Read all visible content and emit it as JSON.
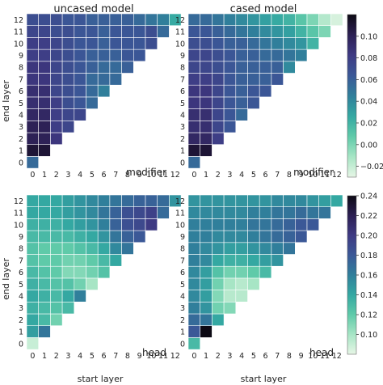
{
  "figure": {
    "xlabel": "start layer",
    "ylabel": "end layer"
  },
  "colors": {
    "colormap_stops": [
      "#e7f6e6",
      "#a7e5c5",
      "#5fcaa9",
      "#34a8a2",
      "#307f9b",
      "#3b5897",
      "#3e3a83",
      "#2c1f53",
      "#0d0a14"
    ],
    "cell_gap": "#ffffff"
  },
  "chart_data": [
    {
      "type": "heatmap",
      "title": "uncased model",
      "label": "modifier",
      "xlabel": "",
      "ylabel": "end layer",
      "x_ticks": [
        "0",
        "1",
        "2",
        "3",
        "4",
        "5",
        "6",
        "7",
        "8",
        "9",
        "10",
        "11",
        "12"
      ],
      "y_ticks": [
        "0",
        "1",
        "2",
        "3",
        "4",
        "5",
        "6",
        "7",
        "8",
        "9",
        "10",
        "11",
        "12"
      ],
      "colorbar_ref": 0,
      "rows": [
        [
          0.055
        ],
        [
          0.11,
          0.11
        ],
        [
          0.1,
          0.1,
          0.085
        ],
        [
          0.1,
          0.1,
          0.08,
          0.075
        ],
        [
          0.095,
          0.095,
          0.08,
          0.075,
          0.075
        ],
        [
          0.09,
          0.09,
          0.08,
          0.07,
          0.065,
          0.055
        ],
        [
          0.09,
          0.09,
          0.075,
          0.07,
          0.065,
          0.055,
          0.045
        ],
        [
          0.085,
          0.085,
          0.075,
          0.07,
          0.065,
          0.055,
          0.055,
          0.055
        ],
        [
          0.085,
          0.085,
          0.075,
          0.07,
          0.065,
          0.06,
          0.055,
          0.055,
          0.06
        ],
        [
          0.08,
          0.08,
          0.075,
          0.07,
          0.065,
          0.06,
          0.06,
          0.06,
          0.065,
          0.065
        ],
        [
          0.08,
          0.08,
          0.075,
          0.07,
          0.065,
          0.065,
          0.06,
          0.065,
          0.065,
          0.065,
          0.07
        ],
        [
          0.075,
          0.075,
          0.07,
          0.07,
          0.065,
          0.065,
          0.06,
          0.065,
          0.065,
          0.065,
          0.07,
          0.055
        ],
        [
          0.07,
          0.07,
          0.07,
          0.065,
          0.065,
          0.06,
          0.06,
          0.06,
          0.06,
          0.055,
          0.05,
          0.045,
          0.025
        ]
      ]
    },
    {
      "type": "heatmap",
      "title": "cased model",
      "label": "modifier",
      "xlabel": "",
      "ylabel": "",
      "x_ticks": [
        "0",
        "1",
        "2",
        "3",
        "4",
        "5",
        "6",
        "7",
        "8",
        "9",
        "10",
        "11",
        "12"
      ],
      "y_ticks": [
        "0",
        "1",
        "2",
        "3",
        "4",
        "5",
        "6",
        "7",
        "8",
        "9",
        "10",
        "11",
        "12"
      ],
      "colorbar_ref": 0,
      "rows": [
        [
          0.055
        ],
        [
          0.11,
          0.11
        ],
        [
          0.095,
          0.095,
          0.08
        ],
        [
          0.09,
          0.09,
          0.075,
          0.065
        ],
        [
          0.09,
          0.09,
          0.075,
          0.065,
          0.055
        ],
        [
          0.085,
          0.085,
          0.075,
          0.065,
          0.06,
          0.065
        ],
        [
          0.085,
          0.085,
          0.075,
          0.065,
          0.06,
          0.065,
          0.065
        ],
        [
          0.08,
          0.08,
          0.075,
          0.065,
          0.06,
          0.06,
          0.06,
          0.065
        ],
        [
          0.075,
          0.075,
          0.07,
          0.065,
          0.06,
          0.06,
          0.06,
          0.06,
          0.04
        ],
        [
          0.075,
          0.075,
          0.07,
          0.065,
          0.06,
          0.06,
          0.055,
          0.055,
          0.05,
          0.045
        ],
        [
          0.07,
          0.07,
          0.065,
          0.06,
          0.06,
          0.055,
          0.05,
          0.045,
          0.04,
          0.035,
          0.02
        ],
        [
          0.065,
          0.065,
          0.06,
          0.055,
          0.05,
          0.045,
          0.04,
          0.035,
          0.03,
          0.02,
          0.01,
          0.0
        ],
        [
          0.055,
          0.055,
          0.05,
          0.045,
          0.04,
          0.035,
          0.03,
          0.025,
          0.02,
          0.01,
          0.0,
          -0.015,
          -0.025
        ]
      ]
    },
    {
      "type": "heatmap",
      "title": "",
      "label": "head",
      "xlabel": "start layer",
      "ylabel": "end layer",
      "x_ticks": [
        "0",
        "1",
        "2",
        "3",
        "4",
        "5",
        "6",
        "7",
        "8",
        "9",
        "10",
        "11",
        "12"
      ],
      "y_ticks": [
        "0",
        "1",
        "2",
        "3",
        "4",
        "5",
        "6",
        "7",
        "8",
        "9",
        "10",
        "11",
        "12"
      ],
      "colorbar_ref": 1,
      "rows": [
        [
          0.09
        ],
        [
          0.145,
          0.165
        ],
        [
          0.14,
          0.13,
          0.115
        ],
        [
          0.135,
          0.13,
          0.125,
          0.13
        ],
        [
          0.14,
          0.135,
          0.13,
          0.14,
          0.16
        ],
        [
          0.135,
          0.13,
          0.125,
          0.125,
          0.115,
          0.1
        ],
        [
          0.13,
          0.125,
          0.12,
          0.11,
          0.11,
          0.115,
          0.125
        ],
        [
          0.125,
          0.12,
          0.12,
          0.115,
          0.115,
          0.12,
          0.13,
          0.14
        ],
        [
          0.125,
          0.12,
          0.12,
          0.12,
          0.125,
          0.13,
          0.14,
          0.155,
          0.165
        ],
        [
          0.13,
          0.13,
          0.13,
          0.13,
          0.135,
          0.14,
          0.15,
          0.165,
          0.175,
          0.18
        ],
        [
          0.135,
          0.135,
          0.135,
          0.14,
          0.145,
          0.15,
          0.16,
          0.175,
          0.185,
          0.19,
          0.2
        ],
        [
          0.14,
          0.14,
          0.14,
          0.145,
          0.15,
          0.155,
          0.165,
          0.175,
          0.185,
          0.19,
          0.195,
          0.17
        ],
        [
          0.14,
          0.14,
          0.14,
          0.145,
          0.15,
          0.155,
          0.16,
          0.165,
          0.17,
          0.175,
          0.175,
          0.17,
          0.15
        ]
      ]
    },
    {
      "type": "heatmap",
      "title": "",
      "label": "head",
      "xlabel": "start layer",
      "ylabel": "",
      "x_ticks": [
        "0",
        "1",
        "2",
        "3",
        "4",
        "5",
        "6",
        "7",
        "8",
        "9",
        "10",
        "11",
        "12"
      ],
      "y_ticks": [
        "0",
        "1",
        "2",
        "3",
        "4",
        "5",
        "6",
        "7",
        "8",
        "9",
        "10",
        "11",
        "12"
      ],
      "colorbar_ref": 1,
      "rows": [
        [
          0.13
        ],
        [
          0.18,
          0.24
        ],
        [
          0.17,
          0.165,
          0.14
        ],
        [
          0.16,
          0.15,
          0.115,
          0.11
        ],
        [
          0.155,
          0.145,
          0.11,
          0.095,
          0.095
        ],
        [
          0.155,
          0.145,
          0.115,
          0.1,
          0.095,
          0.1
        ],
        [
          0.155,
          0.145,
          0.125,
          0.115,
          0.115,
          0.12,
          0.13
        ],
        [
          0.16,
          0.155,
          0.14,
          0.135,
          0.135,
          0.14,
          0.145,
          0.15
        ],
        [
          0.16,
          0.155,
          0.15,
          0.145,
          0.145,
          0.15,
          0.155,
          0.16,
          0.165
        ],
        [
          0.16,
          0.16,
          0.155,
          0.155,
          0.155,
          0.16,
          0.165,
          0.17,
          0.175,
          0.18
        ],
        [
          0.16,
          0.16,
          0.16,
          0.16,
          0.16,
          0.165,
          0.165,
          0.17,
          0.175,
          0.18,
          0.18
        ],
        [
          0.155,
          0.155,
          0.155,
          0.155,
          0.155,
          0.16,
          0.16,
          0.165,
          0.165,
          0.17,
          0.165,
          0.165
        ],
        [
          0.15,
          0.15,
          0.15,
          0.15,
          0.15,
          0.15,
          0.15,
          0.155,
          0.155,
          0.155,
          0.15,
          0.145,
          0.14
        ]
      ]
    }
  ],
  "colorbars": [
    {
      "range": [
        -0.03,
        0.12
      ],
      "ticks": [
        "0.10",
        "0.08",
        "0.06",
        "0.04",
        "0.02",
        "0.00",
        "−0.02"
      ],
      "tick_values": [
        0.1,
        0.08,
        0.06,
        0.04,
        0.02,
        0.0,
        -0.02
      ]
    },
    {
      "range": [
        0.08,
        0.24
      ],
      "ticks": [
        "0.24",
        "0.22",
        "0.20",
        "0.18",
        "0.16",
        "0.14",
        "0.12",
        "0.10"
      ],
      "tick_values": [
        0.24,
        0.22,
        0.2,
        0.18,
        0.16,
        0.14,
        0.12,
        0.1
      ]
    }
  ]
}
